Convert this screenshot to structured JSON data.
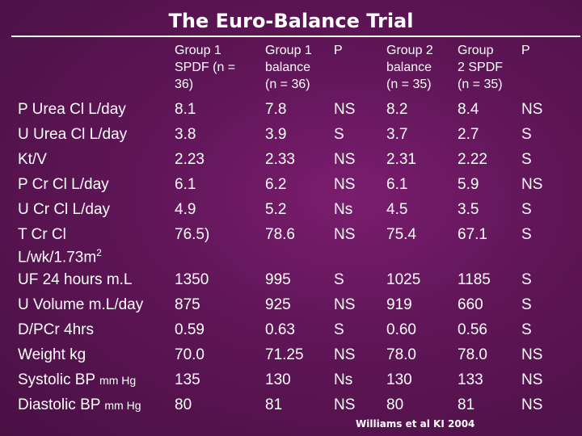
{
  "title": "The Euro-Balance Trial",
  "headers": [
    [
      "Group 1",
      "SPDF (n =",
      "36)"
    ],
    [
      "Group 1",
      "balance",
      "(n = 36)"
    ],
    [
      "P"
    ],
    [
      "Group 2",
      "balance",
      "(n = 35)"
    ],
    [
      "Group",
      "2 SPDF",
      "(n = 35)"
    ],
    [
      "P"
    ]
  ],
  "rows": [
    {
      "label": "P Urea Cl L/day",
      "values": [
        "8.1",
        "7.8",
        "NS",
        "8.2",
        "8.4",
        "NS"
      ]
    },
    {
      "label": "U Urea Cl L/day",
      "values": [
        "3.8",
        "3.9",
        "S",
        "3.7",
        "2.7",
        "S"
      ]
    },
    {
      "label": "Kt/V",
      "values": [
        "2.23",
        "2.33",
        "NS",
        "2.31",
        "2.22",
        "S"
      ]
    },
    {
      "label": "P Cr Cl L/day",
      "values": [
        "6.1",
        "6.2",
        "NS",
        "6.1",
        "5.9",
        "NS"
      ]
    },
    {
      "label": "U Cr Cl L/day",
      "values": [
        "4.9",
        "5.2",
        "Ns",
        "4.5",
        "3.5",
        "S"
      ]
    },
    {
      "label": "T Cr Cl",
      "label_line2": "L/wk/1.73m",
      "label_sup": "2",
      "values": [
        "76.5)",
        "78.6",
        "NS",
        "75.4",
        "67.1",
        "S"
      ]
    },
    {
      "label": "UF 24 hours m.L",
      "values": [
        "1350",
        "995",
        "S",
        "1025",
        "1185",
        "S"
      ]
    },
    {
      "label": "U Volume m.L/day",
      "values": [
        "875",
        "925",
        "NS",
        "919",
        "660",
        "S"
      ]
    },
    {
      "label": "D/PCr 4hrs",
      "values": [
        "0.59",
        "0.63",
        "S",
        "0.60",
        "0.56",
        "S"
      ]
    },
    {
      "label": "Weight kg",
      "values": [
        "70.0",
        "71.25",
        "NS",
        "78.0",
        "78.0",
        "NS"
      ]
    },
    {
      "label": "Systolic BP",
      "label_unit": "mm Hg",
      "values": [
        "135",
        "130",
        "Ns",
        "130",
        "133",
        "NS"
      ]
    },
    {
      "label": "Diastolic BP",
      "label_unit": "mm Hg",
      "values": [
        "80",
        "81",
        "NS",
        "80",
        "81",
        "NS"
      ]
    }
  ],
  "citation": "Williams et al KI 2004"
}
